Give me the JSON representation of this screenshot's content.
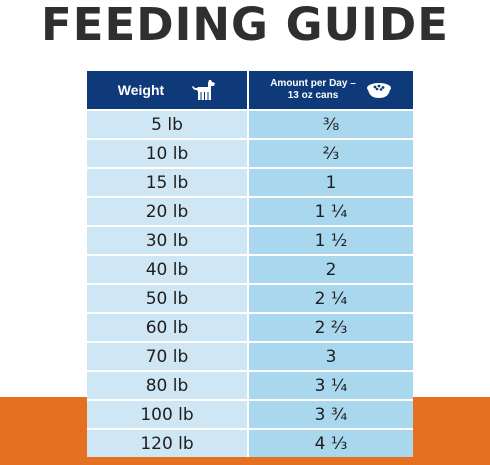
{
  "title": "FEEDING GUIDE",
  "header": {
    "weight_label": "Weight",
    "amount_line1": "Amount per Day –",
    "amount_line2": "13 oz cans",
    "weight_icon": "dog-icon",
    "amount_icon": "food-bowl-icon"
  },
  "colors": {
    "header_bg": "#0e3a79",
    "weight_col_bg": "#cfe6f4",
    "amount_col_bg": "#a9d7ee",
    "accent_band": "#e5701f"
  },
  "rows": [
    {
      "weight": "5 lb",
      "amount": "⅜"
    },
    {
      "weight": "10 lb",
      "amount": "⅔"
    },
    {
      "weight": "15 lb",
      "amount": "1"
    },
    {
      "weight": "20 lb",
      "amount": "1 ¼"
    },
    {
      "weight": "30 lb",
      "amount": "1 ½"
    },
    {
      "weight": "40 lb",
      "amount": "2"
    },
    {
      "weight": "50 lb",
      "amount": "2 ¼"
    },
    {
      "weight": "60 lb",
      "amount": "2 ⅔"
    },
    {
      "weight": "70 lb",
      "amount": "3"
    },
    {
      "weight": "80 lb",
      "amount": "3 ¼"
    },
    {
      "weight": "100 lb",
      "amount": "3 ¾"
    },
    {
      "weight": "120 lb",
      "amount": "4 ⅓"
    }
  ]
}
